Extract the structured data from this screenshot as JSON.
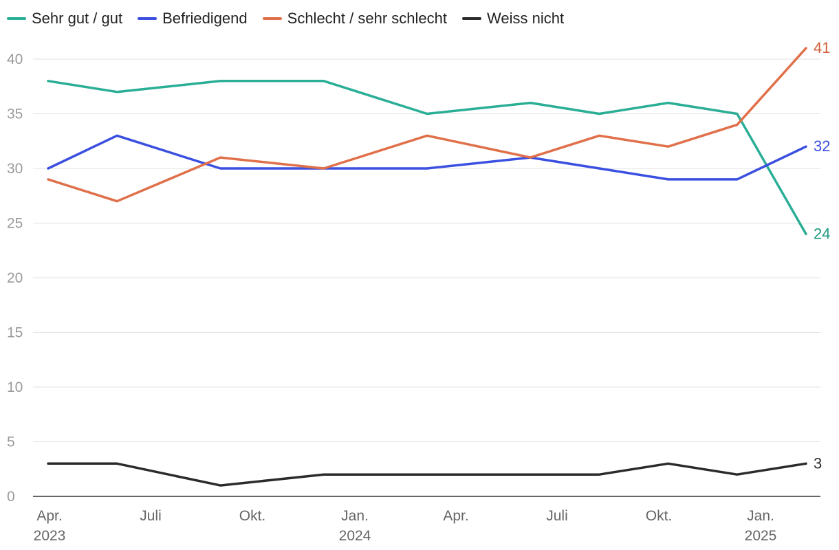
{
  "chart_data": {
    "type": "line",
    "title": "",
    "xlabel": "",
    "ylabel": "",
    "ylim": [
      0,
      40
    ],
    "yticks": [
      0,
      5,
      10,
      15,
      20,
      25,
      30,
      35,
      40
    ],
    "x_points": [
      "2023-04",
      "2023-06",
      "2023-09",
      "2023-12",
      "2024-03",
      "2024-06",
      "2024-08",
      "2024-10",
      "2024-12",
      "2025-02"
    ],
    "x_tick_labels": [
      {
        "label": "Apr.",
        "year": "2023"
      },
      {
        "label": "Juli",
        "year": ""
      },
      {
        "label": "Okt.",
        "year": ""
      },
      {
        "label": "Jan.",
        "year": "2024"
      },
      {
        "label": "Apr.",
        "year": ""
      },
      {
        "label": "Juli",
        "year": ""
      },
      {
        "label": "Okt.",
        "year": ""
      },
      {
        "label": "Jan.",
        "year": "2025"
      }
    ],
    "series": [
      {
        "name": "Sehr gut / gut",
        "color": "#2aae96",
        "label_color": "#1e9a82",
        "values": [
          38,
          37,
          38,
          38,
          35,
          36,
          35,
          36,
          35,
          24
        ],
        "end_label": "24"
      },
      {
        "name": "Befriedigend",
        "color": "#3b4fe0",
        "label_color": "#3b4fe0",
        "values": [
          30,
          33,
          30,
          30,
          30,
          31,
          30,
          29,
          29,
          32
        ],
        "end_label": "32"
      },
      {
        "name": "Schlecht / sehr schlecht",
        "color": "#e0704a",
        "label_color": "#d0603a",
        "values": [
          29,
          27,
          31,
          30,
          33,
          31,
          33,
          32,
          34,
          41
        ],
        "end_label": "41"
      },
      {
        "name": "Weiss nicht",
        "color": "#2b2b2b",
        "label_color": "#2b2b2b",
        "values": [
          3,
          3,
          1,
          2,
          2,
          2,
          2,
          3,
          2,
          3
        ],
        "end_label": "3"
      }
    ],
    "legend_position": "top-left",
    "grid": true
  }
}
